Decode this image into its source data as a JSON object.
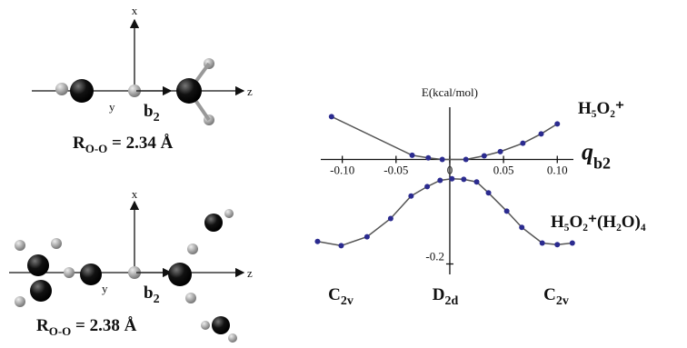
{
  "chart_data": {
    "type": "line",
    "y_label": "E(kcal/mol)",
    "x_label": "q",
    "x_label_subscript": "b2",
    "xlim": [
      -0.12,
      0.115
    ],
    "ylim": [
      -0.22,
      0.1
    ],
    "xticks": [
      {
        "value": -0.1,
        "label": "-0.10"
      },
      -0.05,
      0,
      0.05,
      {
        "value": 0.1,
        "label": "0.10"
      }
    ],
    "yticks": [
      -0.2
    ],
    "series": [
      {
        "name": "H₅O₂⁺",
        "color": "#2b2b8f",
        "x": [
          -0.11,
          -0.035,
          -0.02,
          -0.007,
          0.015,
          0.032,
          0.047,
          0.068,
          0.085,
          0.1
        ],
        "values": [
          0.082,
          0.008,
          0.003,
          0,
          0,
          0.007,
          0.015,
          0.031,
          0.049,
          0.068
        ]
      },
      {
        "name": "H₅O₂⁺(H₂O)₄",
        "color": "#2b2b8f",
        "x": [
          -0.123,
          -0.101,
          -0.077,
          -0.055,
          -0.036,
          -0.021,
          -0.009,
          0.002,
          0.013,
          0.025,
          0.036,
          0.053,
          0.067,
          0.086,
          0.1,
          0.114
        ],
        "values": [
          -0.157,
          -0.165,
          -0.148,
          -0.113,
          -0.07,
          -0.052,
          -0.04,
          -0.037,
          -0.038,
          -0.043,
          -0.064,
          -0.099,
          -0.13,
          -0.16,
          -0.163,
          -0.16
        ]
      }
    ],
    "annotations": [
      {
        "text": "C",
        "sub": "2v"
      },
      {
        "text": "D",
        "sub": "2d"
      },
      {
        "text": "C",
        "sub": "2v"
      }
    ]
  },
  "diagrams": [
    {
      "x": "x",
      "y": "y",
      "z": "z",
      "mode": {
        "text": "b",
        "sub": "2"
      },
      "distance": {
        "text": "R",
        "sub": "O-O",
        "rest": " = 2.34 Å"
      }
    },
    {
      "x": "x",
      "y": "y",
      "z": "z",
      "mode": {
        "text": "b",
        "sub": "2"
      },
      "distance": {
        "text": "R",
        "sub": "O-O",
        "rest": " = 2.38 Å"
      }
    }
  ]
}
